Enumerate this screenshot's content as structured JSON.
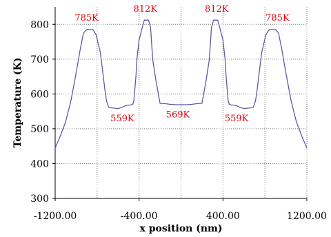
{
  "chart_data": {
    "type": "line",
    "xlabel": "x position (nm)",
    "ylabel": "Temperature (K)",
    "xlim": [
      -1200,
      1200
    ],
    "ylim": [
      300,
      850
    ],
    "grid": true,
    "x_ticks": [
      "-1200.00",
      "-400.00",
      "400.00",
      "1200.00"
    ],
    "x_tick_values": [
      -1200,
      -400,
      400,
      1200
    ],
    "x_minor_ticks": [
      -800,
      0,
      800
    ],
    "y_ticks": [
      "300",
      "400",
      "500",
      "600",
      "700",
      "800"
    ],
    "y_tick_values": [
      300,
      400,
      500,
      600,
      700,
      800
    ],
    "series": [
      {
        "color": "#5a5aa8",
        "x": [
          -1200,
          -1150,
          -1100,
          -1050,
          -1000,
          -960,
          -930,
          -900,
          -880,
          -860,
          -840,
          -810,
          -770,
          -745,
          -725,
          -710,
          -690,
          -660,
          -600,
          -560,
          -540,
          -520,
          -500,
          -480,
          -460,
          -450,
          -430,
          -420,
          -400,
          -370,
          -350,
          -330,
          -320,
          -310,
          -290,
          -270,
          -240,
          -200,
          -150,
          -100,
          -50,
          0,
          50,
          100,
          150,
          200,
          240,
          270,
          290,
          310,
          320,
          330,
          350,
          370,
          400,
          420,
          430,
          450,
          460,
          480,
          500,
          520,
          540,
          560,
          600,
          660,
          690,
          710,
          725,
          745,
          770,
          810,
          840,
          860,
          880,
          900,
          930,
          960,
          1000,
          1050,
          1100,
          1150,
          1200
        ],
        "values": [
          445,
          480,
          520,
          580,
          660,
          730,
          775,
          785,
          785,
          785,
          785,
          770,
          720,
          660,
          610,
          580,
          562,
          560,
          558,
          562,
          565,
          567,
          568,
          568,
          570,
          580,
          650,
          700,
          755,
          790,
          812,
          812,
          812,
          812,
          790,
          700,
          640,
          573,
          572,
          570,
          569,
          569,
          569,
          570,
          572,
          573,
          640,
          700,
          790,
          812,
          812,
          812,
          812,
          790,
          755,
          700,
          650,
          580,
          570,
          568,
          568,
          567,
          565,
          562,
          558,
          560,
          562,
          580,
          610,
          660,
          720,
          770,
          785,
          785,
          785,
          785,
          775,
          730,
          660,
          580,
          520,
          480,
          445
        ]
      }
    ],
    "annotations": [
      {
        "text": "785K",
        "x": -900,
        "y": 810
      },
      {
        "text": "812K",
        "x": -340,
        "y": 836
      },
      {
        "text": "812K",
        "x": 340,
        "y": 836
      },
      {
        "text": "785K",
        "x": 920,
        "y": 810
      },
      {
        "text": "559K",
        "x": -560,
        "y": 522
      },
      {
        "text": "569K",
        "x": -30,
        "y": 532
      },
      {
        "text": "559K",
        "x": 530,
        "y": 522
      }
    ]
  }
}
